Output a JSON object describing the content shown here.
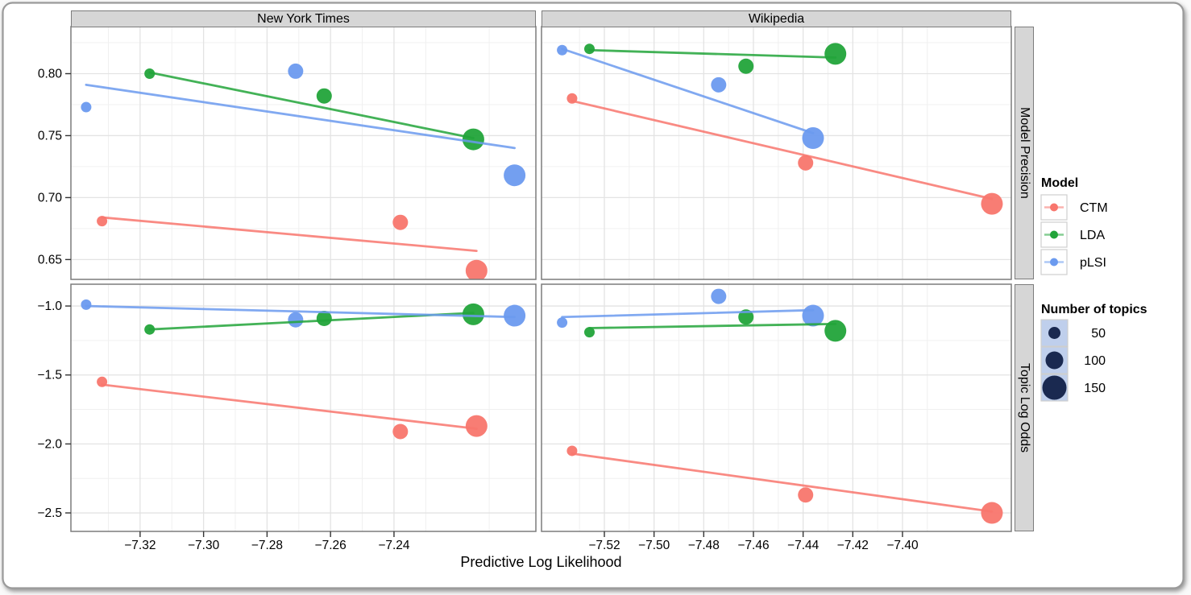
{
  "figure": {
    "xlabel": "Predictive Log Likelihood",
    "cols": [
      {
        "label": "New York Times"
      },
      {
        "label": "Wikipedia"
      }
    ],
    "rows": [
      {
        "label": "Model Precision"
      },
      {
        "label": "Topic Log Odds"
      }
    ]
  },
  "chart_data": {
    "type": "scatter",
    "xlabel": "Predictive Log Likelihood",
    "facet_cols": [
      {
        "label": "New York Times",
        "xlim": [
          -7.3418,
          -7.1953
        ],
        "xticks": [
          -7.32,
          -7.3,
          -7.28,
          -7.26,
          -7.24
        ],
        "xtick_labels": [
          "−7.32",
          "−7.30",
          "−7.28",
          "−7.26",
          "−7.24"
        ],
        "xminor": [
          -7.33,
          -7.31,
          -7.29,
          -7.27,
          -7.25,
          -7.23,
          -7.21
        ]
      },
      {
        "label": "Wikipedia",
        "xlim": [
          -7.5453,
          -7.3562
        ],
        "xticks": [
          -7.52,
          -7.5,
          -7.48,
          -7.46,
          -7.44,
          -7.42,
          -7.4
        ],
        "xtick_labels": [
          "−7.52",
          "−7.50",
          "−7.48",
          "−7.46",
          "−7.44",
          "−7.42",
          "−7.40"
        ],
        "xminor": [
          -7.53,
          -7.51,
          -7.49,
          -7.47,
          -7.45,
          -7.43,
          -7.41,
          -7.39
        ]
      }
    ],
    "facet_rows": [
      {
        "label": "Model Precision",
        "ylim": [
          0.634,
          0.838
        ],
        "yticks": [
          0.8,
          0.75,
          0.7,
          0.65
        ],
        "ytick_labels": [
          "0.80",
          "0.75",
          "0.70",
          "0.65"
        ],
        "yminor": [
          0.825,
          0.775,
          0.725,
          0.675
        ]
      },
      {
        "label": "Topic Log Odds",
        "ylim": [
          -2.634,
          -0.842
        ],
        "yticks": [
          -1.0,
          -1.5,
          -2.0,
          -2.5
        ],
        "ytick_labels": [
          "−1.0",
          "−1.5",
          "−2.0",
          "−2.5"
        ],
        "yminor": [
          -1.25,
          -1.75,
          -2.25
        ]
      }
    ],
    "models": [
      {
        "name": "CTM",
        "color": "#F8766D"
      },
      {
        "name": "LDA",
        "color": "#22A43A"
      },
      {
        "name": "pLSI",
        "color": "#6B9AEF"
      }
    ],
    "size_scale": {
      "50": 6.5,
      "100": 9.5,
      "150": 13.5
    },
    "panels": [
      {
        "col": 0,
        "row": 0,
        "series": [
          {
            "model": "CTM",
            "points": [
              [
                -7.332,
                0.681,
                50
              ],
              [
                -7.238,
                0.68,
                100
              ],
              [
                -7.214,
                0.641,
                150
              ]
            ],
            "trend": [
              [
                -7.332,
                0.684
              ],
              [
                -7.214,
                0.657
              ]
            ]
          },
          {
            "model": "LDA",
            "points": [
              [
                -7.317,
                0.8,
                50
              ],
              [
                -7.262,
                0.782,
                100
              ],
              [
                -7.215,
                0.747,
                150
              ]
            ],
            "trend": [
              [
                -7.317,
                0.801
              ],
              [
                -7.215,
                0.748
              ]
            ]
          },
          {
            "model": "pLSI",
            "points": [
              [
                -7.337,
                0.773,
                50
              ],
              [
                -7.271,
                0.802,
                100
              ],
              [
                -7.202,
                0.718,
                150
              ]
            ],
            "trend": [
              [
                -7.337,
                0.791
              ],
              [
                -7.202,
                0.74
              ]
            ]
          }
        ]
      },
      {
        "col": 1,
        "row": 0,
        "series": [
          {
            "model": "CTM",
            "points": [
              [
                -7.533,
                0.78,
                50
              ],
              [
                -7.439,
                0.728,
                100
              ],
              [
                -7.364,
                0.695,
                150
              ]
            ],
            "trend": [
              [
                -7.533,
                0.778
              ],
              [
                -7.364,
                0.699
              ]
            ]
          },
          {
            "model": "LDA",
            "points": [
              [
                -7.526,
                0.82,
                50
              ],
              [
                -7.463,
                0.806,
                100
              ],
              [
                -7.427,
                0.816,
                150
              ]
            ],
            "trend": [
              [
                -7.526,
                0.819
              ],
              [
                -7.427,
                0.813
              ]
            ]
          },
          {
            "model": "pLSI",
            "points": [
              [
                -7.537,
                0.819,
                50
              ],
              [
                -7.474,
                0.791,
                100
              ],
              [
                -7.436,
                0.748,
                150
              ]
            ],
            "trend": [
              [
                -7.537,
                0.82
              ],
              [
                -7.436,
                0.752
              ]
            ]
          }
        ]
      },
      {
        "col": 0,
        "row": 1,
        "series": [
          {
            "model": "CTM",
            "points": [
              [
                -7.332,
                -1.55,
                50
              ],
              [
                -7.238,
                -1.91,
                100
              ],
              [
                -7.214,
                -1.87,
                150
              ]
            ],
            "trend": [
              [
                -7.332,
                -1.57
              ],
              [
                -7.214,
                -1.89
              ]
            ]
          },
          {
            "model": "LDA",
            "points": [
              [
                -7.317,
                -1.17,
                50
              ],
              [
                -7.262,
                -1.09,
                100
              ],
              [
                -7.215,
                -1.06,
                150
              ]
            ],
            "trend": [
              [
                -7.317,
                -1.17
              ],
              [
                -7.215,
                -1.05
              ]
            ]
          },
          {
            "model": "pLSI",
            "points": [
              [
                -7.337,
                -0.99,
                50
              ],
              [
                -7.271,
                -1.1,
                100
              ],
              [
                -7.202,
                -1.07,
                150
              ]
            ],
            "trend": [
              [
                -7.337,
                -1.0
              ],
              [
                -7.202,
                -1.08
              ]
            ]
          }
        ]
      },
      {
        "col": 1,
        "row": 1,
        "series": [
          {
            "model": "CTM",
            "points": [
              [
                -7.533,
                -2.05,
                50
              ],
              [
                -7.439,
                -2.37,
                100
              ],
              [
                -7.364,
                -2.5,
                150
              ]
            ],
            "trend": [
              [
                -7.533,
                -2.07
              ],
              [
                -7.364,
                -2.49
              ]
            ]
          },
          {
            "model": "LDA",
            "points": [
              [
                -7.526,
                -1.19,
                50
              ],
              [
                -7.463,
                -1.08,
                100
              ],
              [
                -7.427,
                -1.18,
                150
              ]
            ],
            "trend": [
              [
                -7.526,
                -1.16
              ],
              [
                -7.427,
                -1.13
              ]
            ]
          },
          {
            "model": "pLSI",
            "points": [
              [
                -7.537,
                -1.12,
                50
              ],
              [
                -7.474,
                -0.93,
                100
              ],
              [
                -7.436,
                -1.07,
                150
              ]
            ],
            "trend": [
              [
                -7.537,
                -1.08
              ],
              [
                -7.436,
                -1.03
              ]
            ]
          }
        ]
      }
    ]
  },
  "legends": {
    "model": {
      "title": "Model",
      "entries": [
        {
          "label": "CTM",
          "color": "#F8766D"
        },
        {
          "label": "LDA",
          "color": "#22A43A"
        },
        {
          "label": "pLSI",
          "color": "#6B9AEF"
        }
      ]
    },
    "topics": {
      "title": "Number of topics",
      "entries": [
        {
          "label": "50",
          "r": 7.5
        },
        {
          "label": "100",
          "r": 11
        },
        {
          "label": "150",
          "r": 15
        }
      ],
      "dot_color": "#1A2950",
      "key_bg": "#BFCFEC"
    }
  }
}
